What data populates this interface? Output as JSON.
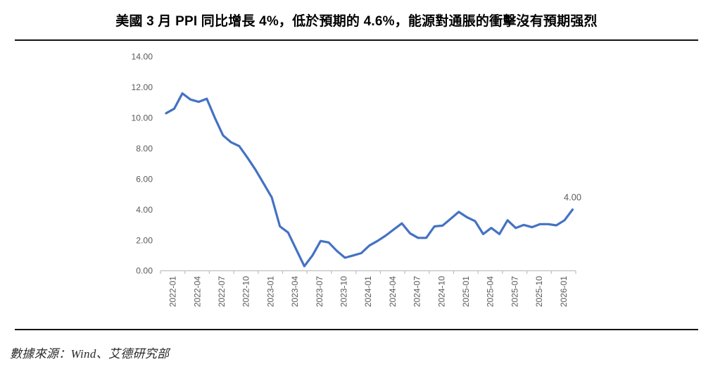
{
  "title": "美國 3 月 PPI 同比增長 4%，低於預期的 4.6%，能源對通脹的衝擊沒有預期强烈",
  "source_note": "數據來源：Wind、艾德研究部",
  "colors": {
    "line": "#4472C4",
    "axis": "#BFBFBF",
    "tick_label": "#595959",
    "data_label": "#595959",
    "rule": "#141414"
  },
  "chart_data": {
    "type": "line",
    "title": "美國 3 月 PPI 同比增長 4%，低於預期的 4.6%，能源對通脹的衝擊沒有預期强烈",
    "xlabel": "",
    "ylabel": "",
    "ylim": [
      0,
      14
    ],
    "y_tick_step": 2,
    "grid": false,
    "legend": false,
    "y_tick_labels": [
      "0.00",
      "2.00",
      "4.00",
      "6.00",
      "8.00",
      "10.00",
      "12.00",
      "14.00"
    ],
    "x_tick_labels": [
      "2022-01",
      "2022-04",
      "2022-07",
      "2022-10",
      "2023-01",
      "2023-04",
      "2023-07",
      "2023-10",
      "2024-01",
      "2024-04",
      "2024-07",
      "2024-10",
      "2025-01",
      "2025-04",
      "2025-07",
      "2025-10",
      "2026-01"
    ],
    "x": [
      "2022-01",
      "2022-02",
      "2022-03",
      "2022-04",
      "2022-05",
      "2022-06",
      "2022-07",
      "2022-08",
      "2022-09",
      "2022-10",
      "2022-11",
      "2022-12",
      "2023-01",
      "2023-02",
      "2023-03",
      "2023-04",
      "2023-05",
      "2023-06",
      "2023-07",
      "2023-08",
      "2023-09",
      "2023-10",
      "2023-11",
      "2023-12",
      "2024-01",
      "2024-02",
      "2024-03",
      "2024-04",
      "2024-05",
      "2024-06",
      "2024-07",
      "2024-08",
      "2024-09",
      "2024-10",
      "2024-11",
      "2024-12",
      "2025-01",
      "2025-02",
      "2025-03",
      "2025-04",
      "2025-05",
      "2025-06",
      "2025-07",
      "2025-08",
      "2025-09",
      "2025-10",
      "2025-11",
      "2025-12",
      "2026-01",
      "2026-02",
      "2026-03"
    ],
    "values": [
      10.3,
      10.6,
      11.6,
      11.2,
      11.05,
      11.25,
      10.0,
      8.85,
      8.4,
      8.15,
      7.4,
      6.6,
      5.7,
      4.8,
      2.9,
      2.5,
      1.4,
      0.3,
      1.0,
      1.95,
      1.85,
      1.3,
      0.85,
      1.0,
      1.15,
      1.65,
      1.95,
      2.3,
      2.7,
      3.1,
      2.45,
      2.15,
      2.15,
      2.9,
      2.95,
      3.4,
      3.85,
      3.5,
      3.25,
      2.4,
      2.8,
      2.4,
      3.3,
      2.8,
      3.0,
      2.85,
      3.05,
      3.05,
      2.97,
      3.3,
      4.0
    ],
    "last_point_label": "4.00"
  }
}
